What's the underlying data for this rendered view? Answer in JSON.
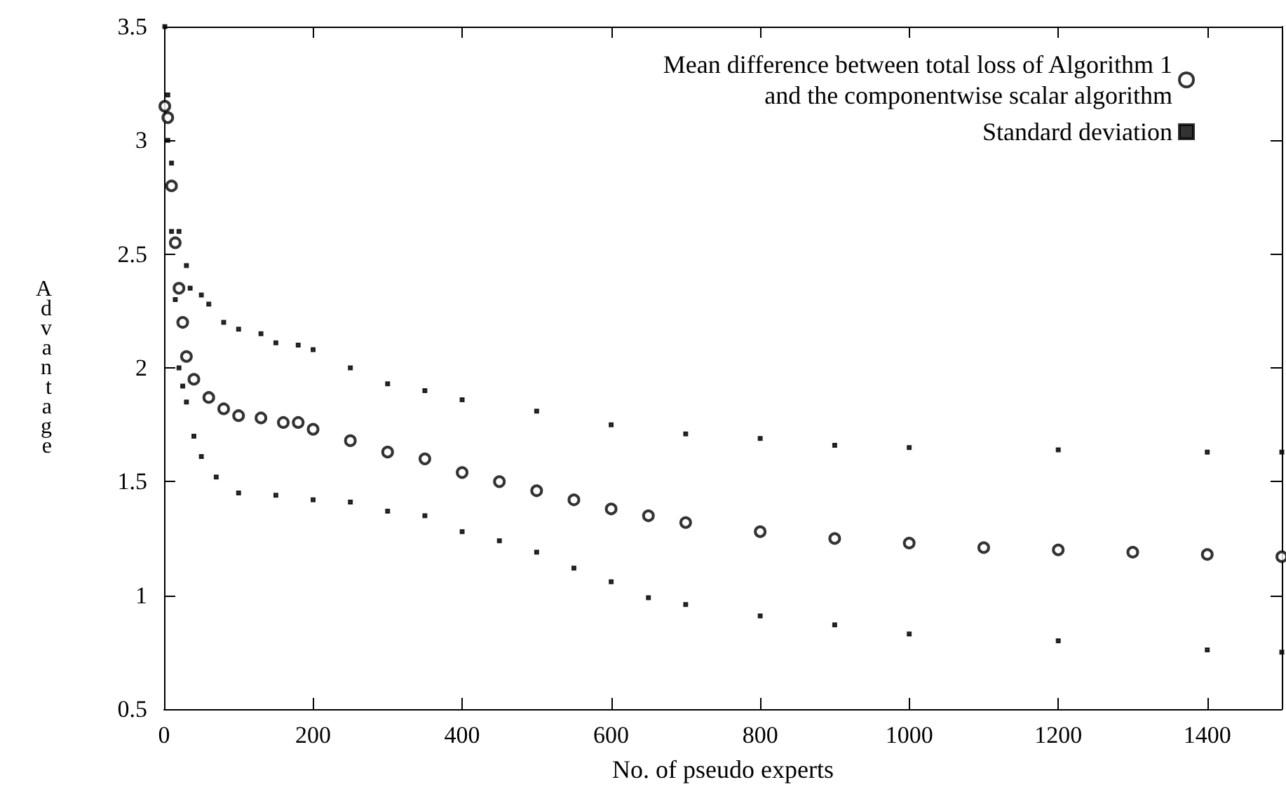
{
  "chart_data": {
    "type": "scatter",
    "xlabel": "No. of pseudo experts",
    "ylabel": "Advantage",
    "xlim": [
      0,
      1500
    ],
    "xticks": [
      0,
      200,
      400,
      600,
      800,
      1000,
      1200,
      1400
    ],
    "ylim": [
      0.5,
      3.5
    ],
    "yticks": [
      0.5,
      1,
      1.5,
      2,
      2.5,
      3,
      3.5
    ],
    "grid": false,
    "legend": "top right",
    "series": [
      {
        "name": "Mean difference between total loss of Algorithm 1\nand the componentwise scalar algorithm",
        "color": "#000000",
        "marker": "circle",
        "x": [
          1,
          5,
          10,
          15,
          20,
          25,
          30,
          40,
          60,
          80,
          100,
          130,
          160,
          180,
          200,
          250,
          300,
          350,
          400,
          450,
          500,
          550,
          600,
          650,
          700,
          800,
          900,
          1000,
          1100,
          1200,
          1300,
          1400,
          1500
        ],
        "values": [
          3.15,
          3.1,
          2.8,
          2.55,
          2.35,
          2.2,
          2.05,
          1.95,
          1.87,
          1.82,
          1.79,
          1.78,
          1.76,
          1.76,
          1.73,
          1.68,
          1.63,
          1.6,
          1.54,
          1.5,
          1.46,
          1.42,
          1.38,
          1.35,
          1.32,
          1.28,
          1.25,
          1.23,
          1.21,
          1.2,
          1.19,
          1.18,
          1.17
        ]
      },
      {
        "name": "Standard deviation",
        "color": "#000000",
        "marker": "square",
        "x": [
          1,
          5,
          10,
          20,
          30,
          35,
          50,
          60,
          80,
          100,
          130,
          150,
          180,
          200,
          250,
          300,
          350,
          400,
          500,
          600,
          700,
          800,
          900,
          1000,
          1200,
          1400,
          1500
        ],
        "values": [
          3.5,
          3.2,
          2.9,
          2.6,
          2.45,
          2.35,
          2.32,
          2.28,
          2.2,
          2.17,
          2.15,
          2.11,
          2.1,
          2.08,
          2.0,
          1.93,
          1.9,
          1.86,
          1.81,
          1.75,
          1.71,
          1.69,
          1.66,
          1.65,
          1.64,
          1.63,
          1.63
        ]
      },
      {
        "color": "#000000",
        "marker": "square",
        "x": [
          5,
          10,
          15,
          20,
          25,
          30,
          40,
          50,
          70,
          100,
          150,
          200,
          250,
          300,
          350,
          400,
          450,
          500,
          550,
          600,
          650,
          700,
          800,
          900,
          1000,
          1200,
          1400,
          1500
        ],
        "values": [
          3.0,
          2.6,
          2.3,
          2.0,
          1.92,
          1.85,
          1.7,
          1.61,
          1.52,
          1.45,
          1.44,
          1.42,
          1.41,
          1.37,
          1.35,
          1.28,
          1.24,
          1.19,
          1.12,
          1.06,
          0.99,
          0.96,
          0.91,
          0.87,
          0.83,
          0.8,
          0.76,
          0.75
        ]
      }
    ]
  }
}
